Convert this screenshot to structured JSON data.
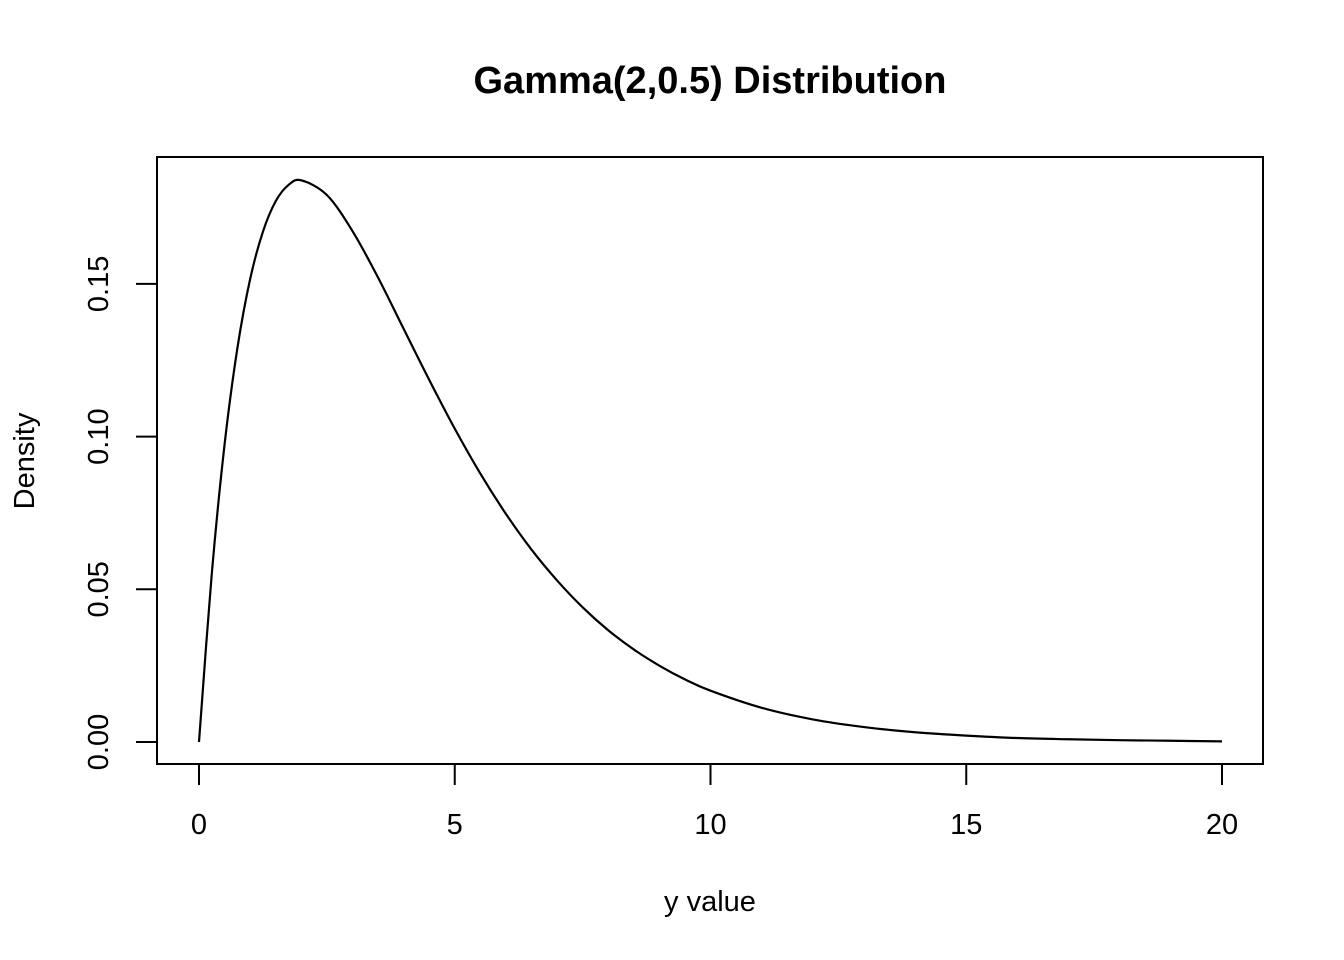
{
  "chart_data": {
    "type": "line",
    "title": "Gamma(2,0.5) Distribution",
    "xlabel": "y value",
    "ylabel": "Density",
    "xlim": [
      0,
      20
    ],
    "ylim": [
      0,
      0.184
    ],
    "x_ticks": [
      "0",
      "5",
      "10",
      "15",
      "20"
    ],
    "y_ticks": [
      "0.00",
      "0.05",
      "0.10",
      "0.15"
    ],
    "grid": false,
    "legend": "none",
    "line_color": "#000000",
    "series": [
      {
        "x": [
          0,
          0.25,
          0.5,
          0.75,
          1,
          1.25,
          1.5,
          1.75,
          2,
          2.5,
          3,
          3.5,
          4,
          4.5,
          5,
          5.5,
          6,
          6.5,
          7,
          7.5,
          8,
          8.5,
          9,
          9.5,
          10,
          11,
          12,
          13,
          14,
          15,
          16,
          17,
          18,
          19,
          20
        ],
        "values": [
          0,
          0.0551,
          0.0974,
          0.1289,
          0.1516,
          0.1671,
          0.1771,
          0.1824,
          0.1839,
          0.1791,
          0.1673,
          0.1521,
          0.1353,
          0.1186,
          0.1026,
          0.0879,
          0.0747,
          0.063,
          0.0529,
          0.0441,
          0.0366,
          0.0303,
          0.025,
          0.0205,
          0.0168,
          0.0112,
          0.0074,
          0.0049,
          0.0032,
          0.0021,
          0.0013,
          0.0009,
          0.0006,
          0.0004,
          0.0002
        ]
      }
    ]
  }
}
